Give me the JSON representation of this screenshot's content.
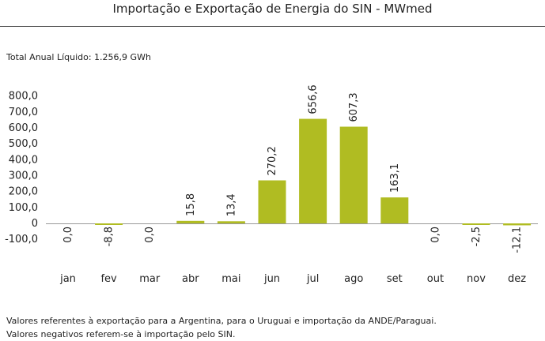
{
  "header": {
    "title": "Importação e Exportação de Energia do SIN - MWmed",
    "total_label": "Total Anual Líquido: 1.256,9 GWh"
  },
  "notes": [
    "Valores referentes à exportação para a Argentina, para o Uruguai e importação da ANDE/Paraguai.",
    "Valores negativos referem-se à importação pelo SIN."
  ],
  "colors": {
    "bar": "#b0bc22",
    "zero_line": "#999999"
  },
  "chart_data": {
    "type": "bar",
    "categories": [
      "jan",
      "fev",
      "mar",
      "abr",
      "mai",
      "jun",
      "jul",
      "ago",
      "set",
      "out",
      "nov",
      "dez"
    ],
    "values": [
      0.0,
      -8.8,
      0.0,
      15.8,
      13.4,
      270.2,
      656.6,
      607.3,
      163.1,
      0.0,
      -2.5,
      -12.1
    ],
    "value_labels": [
      "0,0",
      "-8,8",
      "0,0",
      "15,8",
      "13,4",
      "270,2",
      "656,6",
      "607,3",
      "163,1",
      "0,0",
      "-2,5",
      "-12,1"
    ],
    "yticks": [
      -100,
      0,
      100,
      200,
      300,
      400,
      500,
      600,
      700,
      800
    ],
    "ytick_labels": [
      "-100,0",
      "0",
      "100,0",
      "200,0",
      "300,0",
      "400,0",
      "500,0",
      "600,0",
      "700,0",
      "800,0"
    ],
    "ylim": [
      -100,
      800
    ],
    "grid": false,
    "legend": "none"
  }
}
